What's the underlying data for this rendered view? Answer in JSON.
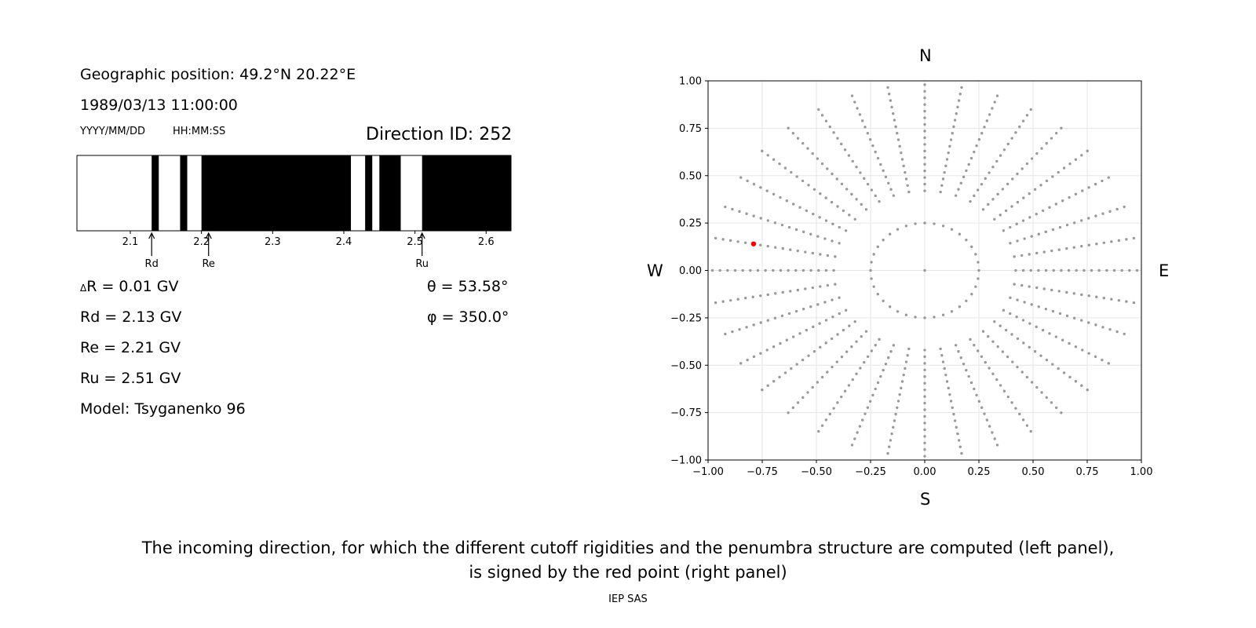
{
  "left_panel": {
    "geo_position": "Geographic position: 49.2°N 20.22°E",
    "datetime": "1989/03/13 11:00:00",
    "date_format": "YYYY/MM/DD",
    "time_format": "HH:MM:SS",
    "direction_id": "Direction ID: 252",
    "delta_r": "R = 0.01 GV",
    "delta_symbol": "Δ",
    "rd": "Rd = 2.13 GV",
    "re": "Re = 2.21 GV",
    "ru": "Ru = 2.51 GV",
    "model": "Model: Tsyganenko 96",
    "theta": "θ = 53.58°",
    "phi": "φ = 350.0°"
  },
  "polar": {
    "north": "N",
    "south": "S",
    "west": "W",
    "east": "E"
  },
  "caption": {
    "line1": "The incoming direction, for which the different cutoff rigidities and the penumbra structure are computed (left panel),",
    "line2": "is signed by the red point (right panel)"
  },
  "footer": "IEP SAS",
  "chart_data": [
    {
      "type": "bar",
      "description_role": "penumbra structure",
      "xlim": [
        2.025,
        2.635
      ],
      "xticks": [
        2.1,
        2.2,
        2.3,
        2.4,
        2.5,
        2.6
      ],
      "xtick_labels": [
        "2.1",
        "2.2",
        "2.3",
        "2.4",
        "2.5",
        "2.6"
      ],
      "forbidden_bands": [
        [
          2.13,
          2.14
        ],
        [
          2.17,
          2.18
        ],
        [
          2.2,
          2.41
        ],
        [
          2.43,
          2.44
        ],
        [
          2.45,
          2.48
        ],
        [
          2.51,
          2.635
        ]
      ],
      "markers": [
        {
          "label": "Rd",
          "value": 2.13
        },
        {
          "label": "Re",
          "value": 2.21
        },
        {
          "label": "Ru",
          "value": 2.51
        }
      ]
    },
    {
      "type": "scatter",
      "xlim": [
        -1.0,
        1.0
      ],
      "ylim": [
        -1.0,
        1.0
      ],
      "xticks": [
        -1.0,
        -0.75,
        -0.5,
        -0.25,
        0.0,
        0.25,
        0.5,
        0.75,
        1.0
      ],
      "xtick_labels": [
        "−1.00",
        "−0.75",
        "−0.50",
        "−0.25",
        "0.00",
        "0.25",
        "0.50",
        "0.75",
        "1.00"
      ],
      "yticks": [
        1.0,
        0.75,
        0.5,
        0.25,
        0.0,
        -0.25,
        -0.5,
        -0.75,
        -1.0
      ],
      "ytick_labels": [
        "1.00",
        "0.75",
        "0.50",
        "0.25",
        "0.00",
        "−0.25",
        "−0.50",
        "−0.75",
        "−1.00"
      ],
      "grid": true,
      "grid_points": {
        "inner_circle": {
          "radius": 0.25,
          "count": 36
        },
        "radial_lines": {
          "count": 36,
          "r_start": 0.42,
          "r_end": 1.0,
          "step": 0.035
        },
        "color": "#999999"
      },
      "highlight_point": {
        "x": -0.79,
        "y": 0.14,
        "color": "#ff0000"
      }
    }
  ]
}
